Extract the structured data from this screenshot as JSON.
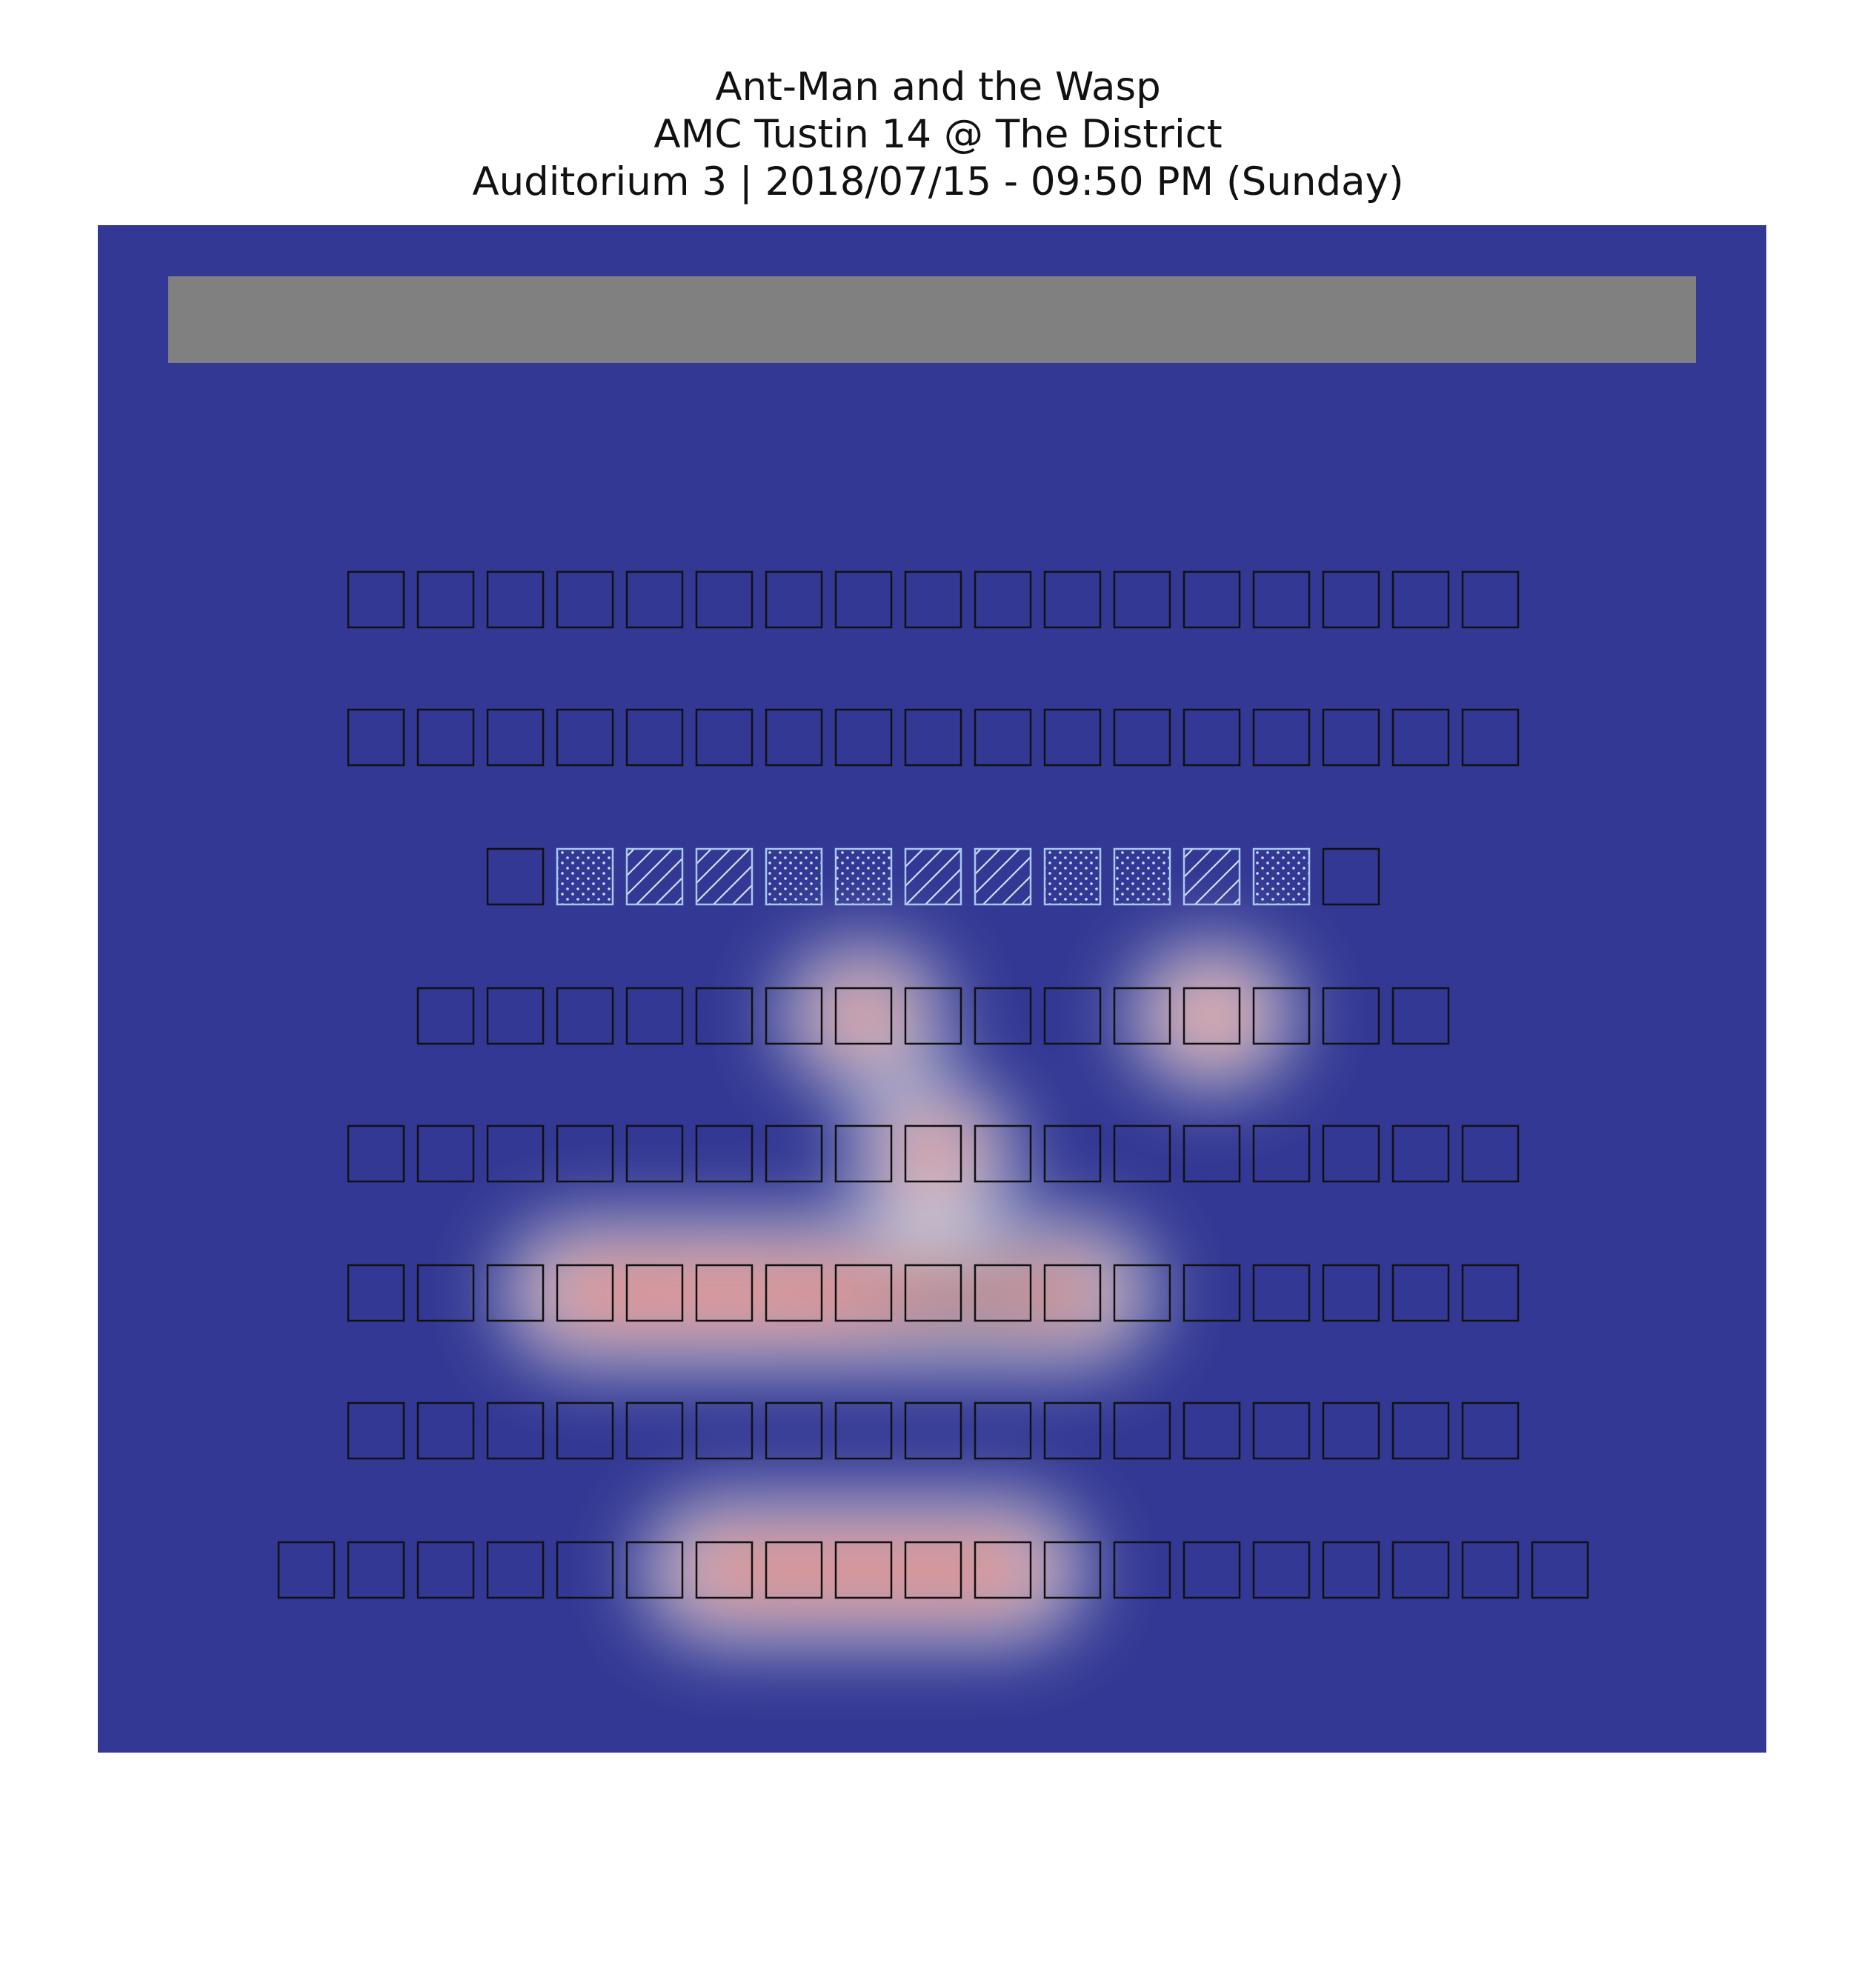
{
  "chart_data": {
    "type": "heatmap",
    "title": [
      "Ant-Man and the Wasp",
      "AMC Tustin 14 @ The District",
      "Auditorium 3 | 2018/07/15 - 09:50 PM (Sunday)"
    ],
    "xlabel": "",
    "ylabel": "",
    "grid": false,
    "legend": "none",
    "seat_legend": {
      "empty": "outlined square",
      "dots": "dotted hatch",
      "diagonal": "diagonal hatch"
    },
    "rows": [
      {
        "row": 1,
        "seats": 17,
        "offset": 0,
        "hatch": []
      },
      {
        "row": 2,
        "seats": 17,
        "offset": 0,
        "hatch": []
      },
      {
        "row": 3,
        "seats": 13,
        "offset": 2,
        "hatch": [
          null,
          "dots",
          "diag",
          "diag",
          "dots",
          "dots",
          "diag",
          "diag",
          "dots",
          "dots",
          "diag",
          "dots",
          null
        ]
      },
      {
        "row": 4,
        "seats": 15,
        "offset": 1,
        "hatch": []
      },
      {
        "row": 5,
        "seats": 17,
        "offset": 0,
        "hatch": []
      },
      {
        "row": 6,
        "seats": 17,
        "offset": 0,
        "hatch": []
      },
      {
        "row": 7,
        "seats": 17,
        "offset": 0,
        "hatch": []
      },
      {
        "row": 8,
        "seats": 19,
        "offset": -1,
        "hatch": []
      }
    ],
    "hotspots": [
      {
        "row": 4,
        "seat": 7,
        "intensity": 0.85
      },
      {
        "row": 4,
        "seat": 12,
        "intensity": 0.7
      },
      {
        "row": 5,
        "seat": 9,
        "intensity": 0.8
      },
      {
        "row": 6,
        "seat": 4,
        "intensity": 0.8
      },
      {
        "row": 6,
        "seat": 5,
        "intensity": 0.8
      },
      {
        "row": 6,
        "seat": 6,
        "intensity": 0.78
      },
      {
        "row": 6,
        "seat": 7,
        "intensity": 0.8
      },
      {
        "row": 6,
        "seat": 8,
        "intensity": 0.85
      },
      {
        "row": 6,
        "seat": 9,
        "intensity": 1.0
      },
      {
        "row": 6,
        "seat": 10,
        "intensity": 1.0
      },
      {
        "row": 6,
        "seat": 11,
        "intensity": 0.9
      },
      {
        "row": 8,
        "seat": 7,
        "intensity": 0.8
      },
      {
        "row": 8,
        "seat": 8,
        "intensity": 0.8
      },
      {
        "row": 8,
        "seat": 9,
        "intensity": 0.8
      },
      {
        "row": 8,
        "seat": 10,
        "intensity": 0.8
      },
      {
        "row": 8,
        "seat": 11,
        "intensity": 0.8
      }
    ],
    "colors": {
      "background": "#333894",
      "screen": "#808080",
      "seat_outline": "#111111",
      "hatch_outline": "#a6c8f0"
    }
  }
}
